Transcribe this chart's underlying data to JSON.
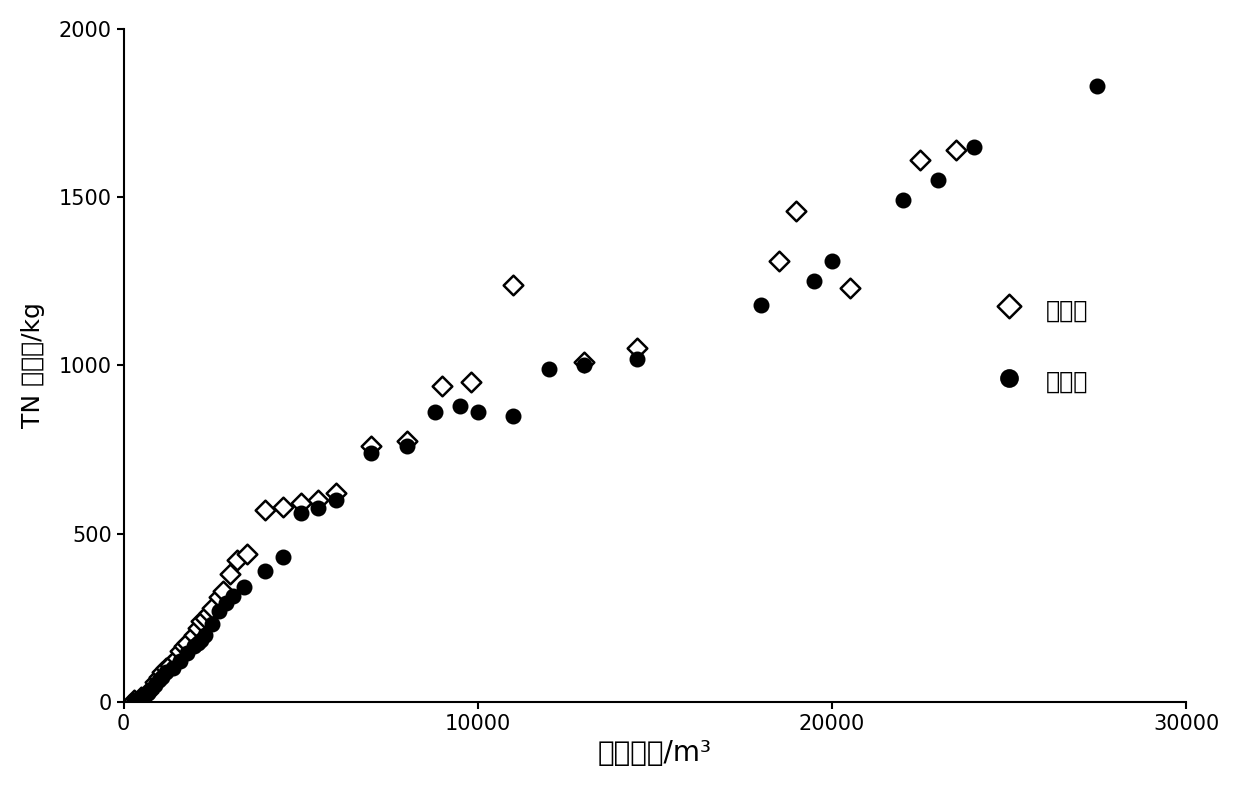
{
  "measured_x": [
    300,
    500,
    700,
    900,
    1000,
    1100,
    1200,
    1300,
    1500,
    1600,
    1700,
    1800,
    2000,
    2100,
    2200,
    2300,
    2400,
    2500,
    2700,
    2800,
    3000,
    3200,
    3500,
    4000,
    4500,
    5000,
    5500,
    6000,
    7000,
    8000,
    9000,
    9800,
    11000,
    13000,
    14500,
    18500,
    19000,
    20500,
    22500,
    23500
  ],
  "measured_y": [
    5,
    15,
    30,
    60,
    75,
    90,
    100,
    110,
    130,
    150,
    165,
    175,
    200,
    220,
    240,
    250,
    265,
    280,
    310,
    330,
    380,
    420,
    440,
    570,
    580,
    590,
    600,
    620,
    760,
    775,
    940,
    950,
    1240,
    1010,
    1050,
    1310,
    1460,
    1230,
    1610,
    1640
  ],
  "estimated_x": [
    300,
    500,
    700,
    900,
    1000,
    1100,
    1200,
    1400,
    1600,
    1800,
    2000,
    2100,
    2200,
    2300,
    2500,
    2700,
    2900,
    3100,
    3400,
    4000,
    4500,
    5000,
    5500,
    6000,
    7000,
    8000,
    8800,
    9500,
    10000,
    11000,
    12000,
    13000,
    14500,
    18000,
    19500,
    20000,
    22000,
    23000,
    24000,
    27500
  ],
  "estimated_y": [
    5,
    10,
    25,
    50,
    65,
    75,
    90,
    100,
    120,
    145,
    165,
    175,
    185,
    200,
    230,
    270,
    295,
    315,
    340,
    390,
    430,
    560,
    575,
    600,
    740,
    760,
    860,
    880,
    860,
    850,
    990,
    1000,
    1020,
    1180,
    1250,
    1310,
    1490,
    1550,
    1650,
    1830
  ],
  "xlabel": "特征体积/m³",
  "ylabel": "TN 累积量/kg",
  "xlim": [
    0,
    30000
  ],
  "ylim": [
    0,
    2000
  ],
  "xticks": [
    0,
    10000,
    20000,
    30000
  ],
  "yticks": [
    0,
    500,
    1000,
    1500,
    2000
  ],
  "legend_measured": "实测値",
  "legend_estimated": "估测値",
  "bg_color": "#ffffff",
  "xlabel_fontsize": 20,
  "ylabel_fontsize": 18,
  "tick_fontsize": 15,
  "legend_fontsize": 17
}
